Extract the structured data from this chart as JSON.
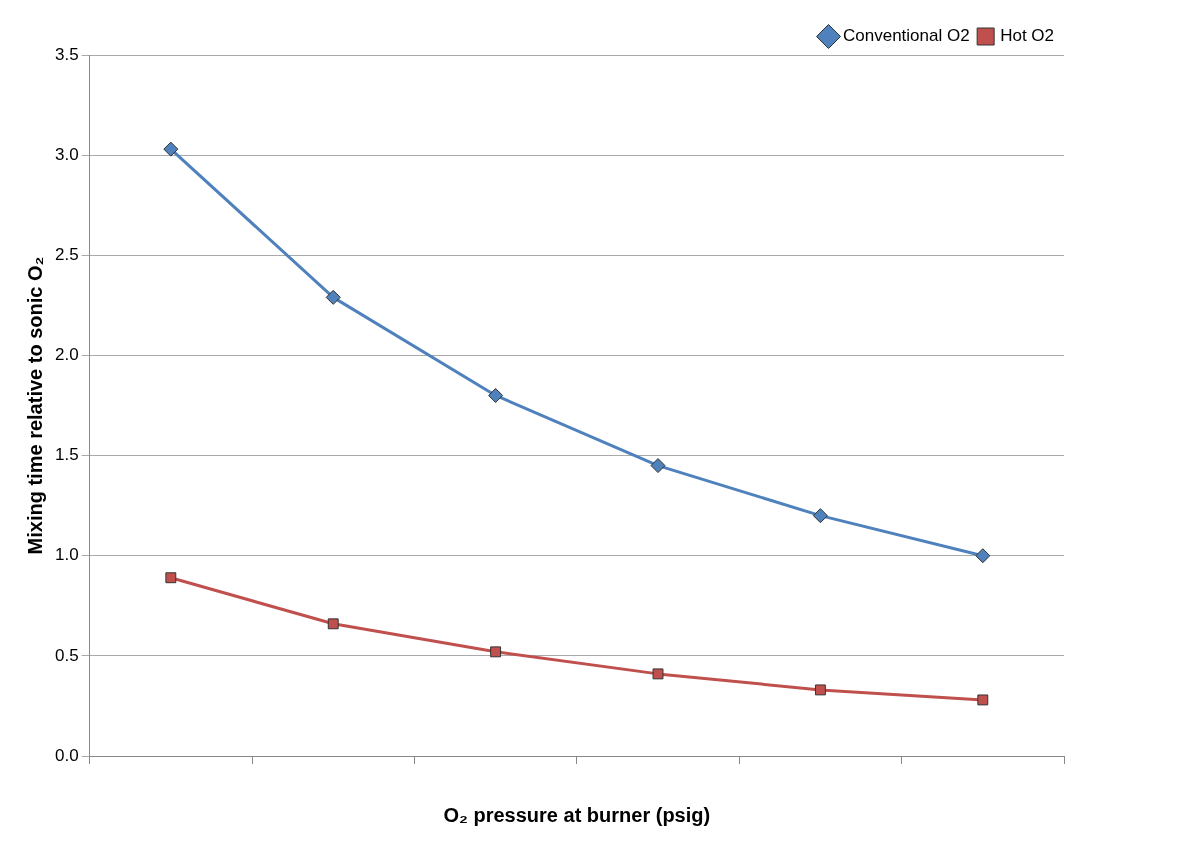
{
  "chart_data": {
    "type": "line",
    "xlabel": "O₂ pressure at burner (psig)",
    "ylabel": "Mixing time relative to sonic O₂",
    "categories": [
      null,
      null,
      null,
      null,
      null,
      null
    ],
    "ylim": [
      0,
      3.5
    ],
    "yticks": [
      {
        "value": 0,
        "label": "0.0"
      },
      {
        "value": 0.5,
        "label": "0.5"
      },
      {
        "value": 1,
        "label": "1.0"
      },
      {
        "value": 1.5,
        "label": "1.5"
      },
      {
        "value": 2,
        "label": "2.0"
      },
      {
        "value": 2.5,
        "label": "2.5"
      },
      {
        "value": 3,
        "label": "3.0"
      },
      {
        "value": 3.5,
        "label": "3.5"
      }
    ],
    "tick_labels": "y",
    "grid": "y",
    "legend": "top right",
    "line_style": "solid",
    "series": [
      {
        "name": "Conventional O2",
        "color": "#4f81bd",
        "marker": "diamond",
        "values": [
          3.03,
          2.29,
          1.8,
          1.45,
          1.2,
          1.0
        ]
      },
      {
        "name": "Hot O2",
        "color": "#c0504d",
        "marker": "square",
        "values": [
          0.89,
          0.66,
          0.52,
          0.41,
          0.33,
          0.28
        ]
      }
    ]
  }
}
